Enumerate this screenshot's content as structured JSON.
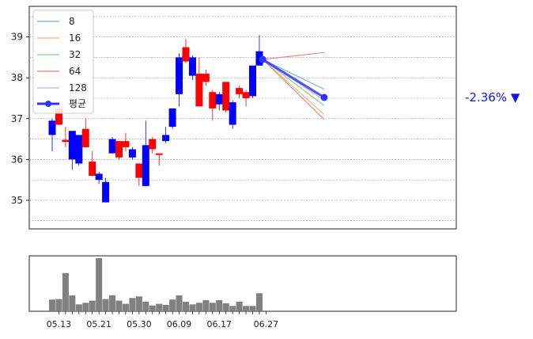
{
  "chart_data": {
    "type": "candlestick",
    "price_panel": {
      "ylim": [
        34.3,
        39.75
      ],
      "yticks": [
        "35",
        "36",
        "37",
        "38",
        "39"
      ],
      "grid": "horizontal-dashed"
    },
    "volume_panel": {
      "ylim": [
        0,
        1.0
      ]
    },
    "xtick_labels": [
      "05.13",
      "05.21",
      "05.30",
      "06.09",
      "06.17",
      "06.27"
    ],
    "xtick_index": [
      1,
      7,
      13,
      19,
      25,
      32
    ],
    "candles": [
      {
        "o": 36.95,
        "h": 37.0,
        "l": 36.2,
        "c": 36.6,
        "v": 0.22
      },
      {
        "o": 36.85,
        "h": 37.3,
        "l": 36.85,
        "c": 37.25,
        "v": 0.23
      },
      {
        "o": 36.43,
        "h": 36.8,
        "l": 36.3,
        "c": 36.48,
        "v": 0.72
      },
      {
        "o": 36.7,
        "h": 36.7,
        "l": 35.75,
        "c": 36.0,
        "v": 0.3
      },
      {
        "o": 36.6,
        "h": 36.6,
        "l": 35.85,
        "c": 35.9,
        "v": 0.13
      },
      {
        "o": 36.3,
        "h": 37.0,
        "l": 36.3,
        "c": 36.75,
        "v": 0.16
      },
      {
        "o": 35.6,
        "h": 36.2,
        "l": 35.6,
        "c": 35.95,
        "v": 0.2
      },
      {
        "o": 35.65,
        "h": 35.7,
        "l": 35.4,
        "c": 35.5,
        "v": 1.0
      },
      {
        "o": 35.45,
        "h": 35.55,
        "l": 34.95,
        "c": 34.95,
        "v": 0.23
      },
      {
        "o": 36.5,
        "h": 36.55,
        "l": 36.15,
        "c": 36.15,
        "v": 0.3
      },
      {
        "o": 36.05,
        "h": 36.45,
        "l": 36.0,
        "c": 36.45,
        "v": 0.2
      },
      {
        "o": 36.3,
        "h": 36.65,
        "l": 36.2,
        "c": 36.45,
        "v": 0.14
      },
      {
        "o": 36.25,
        "h": 36.3,
        "l": 36.0,
        "c": 36.05,
        "v": 0.25
      },
      {
        "o": 35.55,
        "h": 35.9,
        "l": 35.35,
        "c": 35.9,
        "v": 0.28
      },
      {
        "o": 36.35,
        "h": 36.95,
        "l": 35.35,
        "c": 35.35,
        "v": 0.18
      },
      {
        "o": 36.25,
        "h": 36.55,
        "l": 36.15,
        "c": 36.5,
        "v": 0.11
      },
      {
        "o": 36.15,
        "h": 36.15,
        "l": 35.85,
        "c": 36.15,
        "v": 0.14
      },
      {
        "o": 36.6,
        "h": 36.8,
        "l": 36.4,
        "c": 36.45,
        "v": 0.12
      },
      {
        "o": 37.25,
        "h": 37.25,
        "l": 36.75,
        "c": 36.8,
        "v": 0.22
      },
      {
        "o": 38.5,
        "h": 38.6,
        "l": 37.3,
        "c": 37.6,
        "v": 0.3
      },
      {
        "o": 38.4,
        "h": 38.95,
        "l": 38.35,
        "c": 38.75,
        "v": 0.18
      },
      {
        "o": 38.5,
        "h": 38.55,
        "l": 37.95,
        "c": 38.05,
        "v": 0.13
      },
      {
        "o": 37.3,
        "h": 38.5,
        "l": 37.3,
        "c": 38.1,
        "v": 0.16
      },
      {
        "o": 37.9,
        "h": 38.2,
        "l": 37.8,
        "c": 38.1,
        "v": 0.21
      },
      {
        "o": 37.25,
        "h": 37.7,
        "l": 36.95,
        "c": 37.65,
        "v": 0.16
      },
      {
        "o": 37.6,
        "h": 37.65,
        "l": 37.2,
        "c": 37.35,
        "v": 0.21
      },
      {
        "o": 37.2,
        "h": 37.9,
        "l": 37.15,
        "c": 37.9,
        "v": 0.15
      },
      {
        "o": 37.4,
        "h": 37.45,
        "l": 36.75,
        "c": 36.85,
        "v": 0.1
      },
      {
        "o": 37.6,
        "h": 37.8,
        "l": 37.5,
        "c": 37.75,
        "v": 0.18
      },
      {
        "o": 37.5,
        "h": 37.7,
        "l": 37.3,
        "c": 37.65,
        "v": 0.1
      },
      {
        "o": 38.3,
        "h": 38.3,
        "l": 37.5,
        "c": 37.55,
        "v": 0.1
      },
      {
        "o": 38.65,
        "h": 39.05,
        "l": 38.3,
        "c": 38.3,
        "v": 0.34
      }
    ],
    "forecast": {
      "start_index": 31.5,
      "start_value": 38.45,
      "end_index": 40.7,
      "lines": [
        {
          "name": "8",
          "color": "#7bafd4",
          "end": 37.72
        },
        {
          "name": "16",
          "color": "#f5b27a",
          "end": 37.1
        },
        {
          "name": "32",
          "color": "#7fd27f",
          "end": 37.32
        },
        {
          "name": "64",
          "color": "#e88080",
          "end": 36.98
        },
        {
          "name": "128",
          "color": "#c9a8e8",
          "end": 37.45
        },
        {
          "name": "64",
          "color": "#e88080",
          "end": 38.62,
          "hidden_in_legend": true
        }
      ],
      "mean": {
        "name": "평균",
        "color": "#3333ff",
        "end": 37.52
      },
      "change_label": "-2.36% ▼",
      "change_color": "#1010ee"
    },
    "colors": {
      "up": "#ff0000",
      "down": "#0000ff",
      "volume": "#808080",
      "grid": "#999999"
    },
    "legend": {
      "placement": "top-left",
      "entries": [
        "8",
        "16",
        "32",
        "64",
        "128",
        "평균"
      ]
    }
  }
}
